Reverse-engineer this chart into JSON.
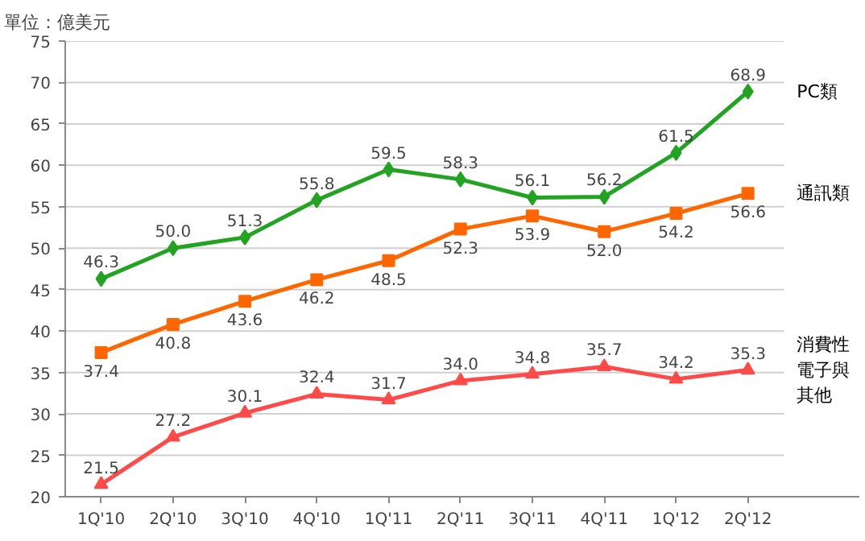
{
  "chart_data": {
    "type": "line",
    "annotations": [
      "單位：億美元"
    ],
    "categories": [
      "1Q'10",
      "2Q'10",
      "3Q'10",
      "4Q'10",
      "1Q'11",
      "2Q'11",
      "3Q'11",
      "4Q'11",
      "1Q'12",
      "2Q'12"
    ],
    "series": [
      {
        "name": "PC類",
        "color": "#22a322",
        "marker": "diamond",
        "values": [
          46.3,
          50.0,
          51.3,
          55.8,
          59.5,
          58.3,
          56.1,
          56.2,
          61.5,
          68.9
        ],
        "value_labels": [
          "46.3",
          "50.0",
          "51.3",
          "55.8",
          "59.5",
          "58.3",
          "56.1",
          "56.2",
          "61.5",
          "68.9"
        ]
      },
      {
        "name": "通訊類",
        "color": "#ff6600",
        "marker": "square",
        "values": [
          37.4,
          40.8,
          43.6,
          46.2,
          48.5,
          52.3,
          53.9,
          52.0,
          54.2,
          56.6
        ],
        "value_labels": [
          "37.4",
          "40.8",
          "43.6",
          "46.2",
          "48.5",
          "52.3",
          "53.9",
          "52.0",
          "54.2",
          "56.6"
        ]
      },
      {
        "name": "消費性電子與其他",
        "color": "#ff4a4a",
        "marker": "triangle",
        "values": [
          21.5,
          27.2,
          30.1,
          32.4,
          31.7,
          34.0,
          34.8,
          35.7,
          34.2,
          35.3
        ],
        "value_labels": [
          "21.5",
          "27.2",
          "30.1",
          "32.4",
          "31.7",
          "34.0",
          "34.8",
          "35.7",
          "34.2",
          "35.3"
        ]
      }
    ],
    "ylim": [
      20,
      75
    ],
    "yticks": [
      20,
      25,
      30,
      35,
      40,
      45,
      50,
      55,
      60,
      65,
      70,
      75
    ],
    "grid": "y",
    "line_style": "solid"
  }
}
